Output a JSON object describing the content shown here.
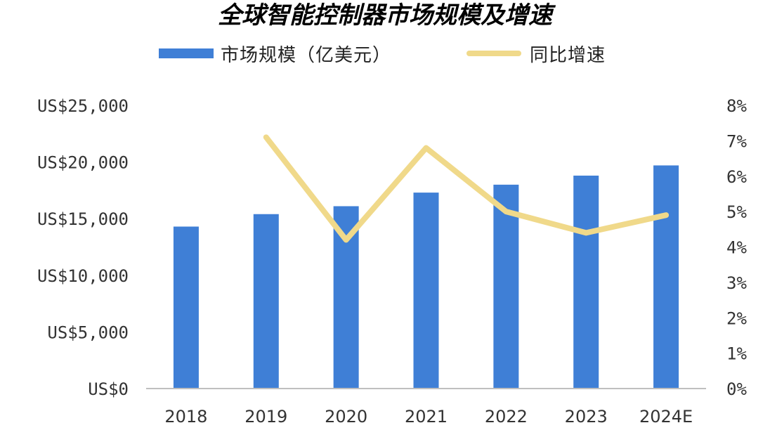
{
  "title": "全球智能控制器市场规模及增速",
  "legend": {
    "bar_label": "市场规模（亿美元）",
    "line_label": "同比增速"
  },
  "colors": {
    "bar": "#3f7fd6",
    "line": "#f0d98a",
    "axis": "#bfbfbf"
  },
  "chart_data": {
    "type": "bar",
    "categories": [
      "2018",
      "2019",
      "2020",
      "2021",
      "2022",
      "2023",
      "2024E"
    ],
    "series": [
      {
        "name": "市场规模（亿美元）",
        "type": "bar",
        "axis": "left",
        "values": [
          14300,
          15400,
          16100,
          17300,
          18000,
          18800,
          19700
        ]
      },
      {
        "name": "同比增速",
        "type": "line",
        "axis": "right",
        "values": [
          null,
          7.1,
          4.2,
          6.8,
          5.0,
          4.4,
          4.9
        ]
      }
    ],
    "left_axis": {
      "ylim": [
        0,
        25000
      ],
      "ticks": [
        0,
        5000,
        10000,
        15000,
        20000,
        25000
      ],
      "tick_labels": [
        "US$0",
        "US$5,000",
        "US$10,000",
        "US$15,000",
        "US$20,000",
        "US$25,000"
      ]
    },
    "right_axis": {
      "ylim": [
        0,
        8
      ],
      "ticks": [
        0,
        1,
        2,
        3,
        4,
        5,
        6,
        7,
        8
      ],
      "tick_labels": [
        "0%",
        "1%",
        "2%",
        "3%",
        "4%",
        "5%",
        "6%",
        "7%",
        "8%"
      ]
    },
    "grid": false,
    "legend_position": "top"
  }
}
